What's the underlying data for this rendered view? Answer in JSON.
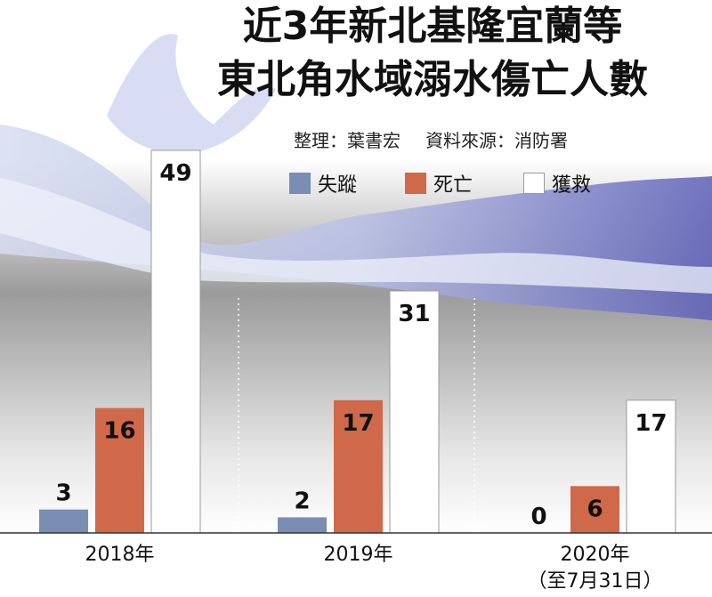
{
  "title_lines": [
    "近3年新北基隆宜蘭等",
    "東北角水域溺水傷亡人數"
  ],
  "credits": {
    "editor": "整理：葉書宏",
    "source": "資料來源：消防署"
  },
  "colors": {
    "missing": "#7a8db3",
    "dead": "#d0694a",
    "rescued": "#ffffff",
    "background_top": "#ffffff",
    "background_mid": "#9a9a9a",
    "water": "#7e85c9"
  },
  "chart_data": {
    "type": "bar",
    "categories": [
      "2018年",
      "2019年",
      "2020年"
    ],
    "category_notes": [
      "",
      "",
      "（至7月31日）"
    ],
    "series": [
      {
        "name": "失蹤",
        "values": [
          3,
          2,
          0
        ]
      },
      {
        "name": "死亡",
        "values": [
          16,
          17,
          6
        ]
      },
      {
        "name": "獲救",
        "values": [
          49,
          31,
          17
        ]
      }
    ],
    "legend_position": "top",
    "ylim": [
      0,
      49
    ],
    "grid": false
  }
}
